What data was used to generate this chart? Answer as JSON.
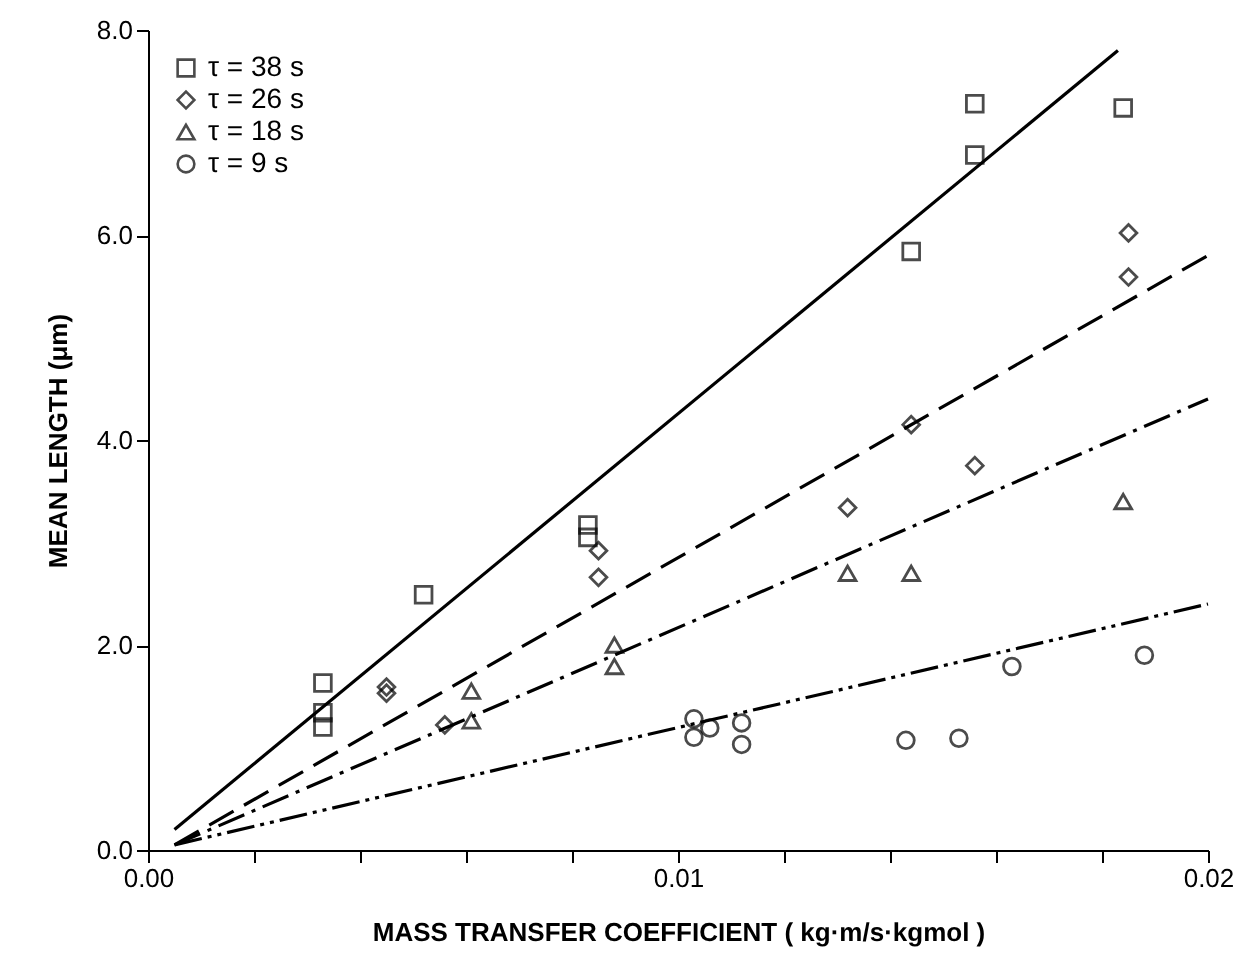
{
  "chart_data": {
    "type": "scatter",
    "xlabel": "MASS TRANSFER COEFFICIENT ( kg·m/s·kgmol )",
    "ylabel": "MEAN LENGTH (μm)",
    "xlim": [
      0,
      0.02
    ],
    "ylim": [
      0,
      8
    ],
    "xticks": [
      {
        "value": 0,
        "label": "0.00"
      },
      {
        "value": 0.002,
        "label": null
      },
      {
        "value": 0.004,
        "label": null
      },
      {
        "value": 0.006,
        "label": null
      },
      {
        "value": 0.008,
        "label": null
      },
      0.01,
      {
        "value": 0.012,
        "label": null
      },
      {
        "value": 0.014,
        "label": null
      },
      {
        "value": 0.016,
        "label": null
      },
      {
        "value": 0.018,
        "label": null
      },
      0.02
    ],
    "yticks": [
      {
        "value": 0,
        "label": "0.0"
      },
      {
        "value": 2,
        "label": "2.0"
      },
      {
        "value": 4,
        "label": "4.0"
      },
      {
        "value": 6,
        "label": "6.0"
      },
      {
        "value": 8,
        "label": "8.0"
      }
    ],
    "grid": false,
    "legend": "top left",
    "series": [
      {
        "name": "τ = 38 s",
        "marker": "square",
        "color": "#000000",
        "x": [
          0.0033,
          0.0033,
          0.0033,
          0.0052,
          0.0083,
          0.0083,
          0.0144,
          0.0156,
          0.0156,
          0.0184
        ],
        "values": [
          1.63,
          1.34,
          1.2,
          2.49,
          3.17,
          3.05,
          5.84,
          6.78,
          7.28,
          7.24
        ]
      },
      {
        "type": "line",
        "line_style": "solid",
        "color": "#000000",
        "x": [
          0.0005,
          0.0183
        ],
        "values": [
          0.2,
          7.8
        ]
      },
      {
        "name": "τ = 26 s",
        "marker": "diamond",
        "color": "#000000",
        "x": [
          0.0045,
          0.0045,
          0.0056,
          0.0085,
          0.0085,
          0.0132,
          0.0144,
          0.0156,
          0.0185,
          0.0185
        ],
        "values": [
          1.59,
          1.53,
          1.22,
          2.92,
          2.66,
          3.34,
          4.15,
          3.75,
          6.02,
          5.59
        ]
      },
      {
        "type": "line",
        "line_style": "dashed",
        "color": "#000000",
        "x": [
          0.0005,
          0.02
        ],
        "values": [
          0.05,
          5.8
        ]
      },
      {
        "name": "τ = 18 s",
        "marker": "triangle",
        "color": "#000000",
        "x": [
          0.0061,
          0.0061,
          0.0088,
          0.0088,
          0.0132,
          0.0144,
          0.0184
        ],
        "values": [
          1.55,
          1.26,
          2.0,
          1.79,
          2.7,
          2.7,
          3.4
        ]
      },
      {
        "type": "line",
        "line_style": "dashdot",
        "color": "#000000",
        "x": [
          0.0005,
          0.02
        ],
        "values": [
          0.05,
          4.4
        ]
      },
      {
        "name": "τ =  9 s",
        "marker": "circle",
        "color": "#000000",
        "x": [
          0.0103,
          0.0103,
          0.0106,
          0.0112,
          0.0112,
          0.0143,
          0.0153,
          0.0163,
          0.0188
        ],
        "values": [
          1.28,
          1.1,
          1.19,
          1.24,
          1.03,
          1.07,
          1.09,
          1.79,
          1.9
        ]
      },
      {
        "type": "line",
        "line_style": "dashdotdot",
        "color": "#000000",
        "x": [
          0.0005,
          0.02
        ],
        "values": [
          0.05,
          2.4
        ]
      }
    ]
  }
}
